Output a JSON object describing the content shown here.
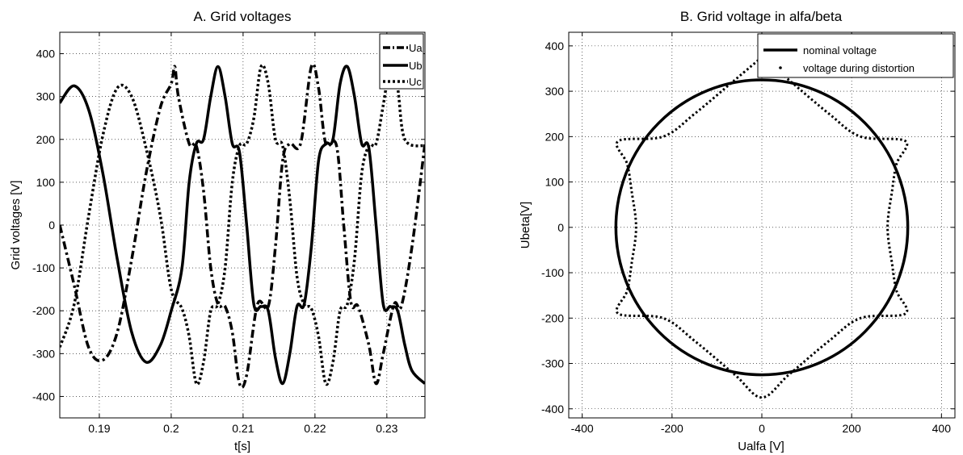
{
  "chart_data": [
    {
      "type": "line",
      "title": "A.   Grid voltages",
      "xlabel": "t[s]",
      "ylabel": "Grid voltages [V]",
      "xlim": [
        0.1845,
        0.2353
      ],
      "ylim": [
        -450,
        450
      ],
      "xticks": [
        0.19,
        0.2,
        0.21,
        0.22,
        0.23
      ],
      "xtick_labels": [
        "0.19",
        "0.2",
        "0.21",
        "0.22",
        "0.23"
      ],
      "yticks": [
        -400,
        -300,
        -200,
        -100,
        0,
        100,
        200,
        300,
        400
      ],
      "ytick_labels": [
        "-400",
        "-300",
        "-200",
        "-100",
        "0",
        "100",
        "200",
        "300",
        "400"
      ],
      "grid": true,
      "legend_position": "top-right",
      "series": [
        {
          "name": "Ua",
          "style": "dashdot",
          "color": "#000000",
          "points": [
            [
              0.1845,
              0
            ],
            [
              0.1865,
              -140
            ],
            [
              0.1885,
              -285
            ],
            [
              0.1905,
              -315
            ],
            [
              0.1925,
              -250
            ],
            [
              0.1945,
              -80
            ],
            [
              0.1965,
              120
            ],
            [
              0.1985,
              275
            ],
            [
              0.2,
              330
            ],
            [
              0.2005,
              370
            ],
            [
              0.201,
              300
            ],
            [
              0.2025,
              190
            ],
            [
              0.2035,
              185
            ],
            [
              0.2045,
              80
            ],
            [
              0.2055,
              -100
            ],
            [
              0.2065,
              -185
            ],
            [
              0.2075,
              -190
            ],
            [
              0.2085,
              -250
            ],
            [
              0.2095,
              -370
            ],
            [
              0.2105,
              -350
            ],
            [
              0.212,
              -185
            ],
            [
              0.2135,
              -190
            ],
            [
              0.2145,
              -50
            ],
            [
              0.2155,
              150
            ],
            [
              0.2165,
              190
            ],
            [
              0.218,
              190
            ],
            [
              0.2195,
              370
            ],
            [
              0.2205,
              320
            ],
            [
              0.2215,
              190
            ],
            [
              0.223,
              185
            ],
            [
              0.224,
              0
            ],
            [
              0.225,
              -180
            ],
            [
              0.226,
              -190
            ],
            [
              0.2275,
              -280
            ],
            [
              0.2285,
              -370
            ],
            [
              0.2295,
              -300
            ],
            [
              0.231,
              -185
            ],
            [
              0.232,
              -190
            ],
            [
              0.2335,
              -50
            ],
            [
              0.2353,
              190
            ]
          ]
        },
        {
          "name": "Ub",
          "style": "solid",
          "color": "#000000",
          "points": [
            [
              0.1845,
              285
            ],
            [
              0.1865,
              325
            ],
            [
              0.1885,
              270
            ],
            [
              0.1905,
              120
            ],
            [
              0.1925,
              -80
            ],
            [
              0.1945,
              -250
            ],
            [
              0.1965,
              -320
            ],
            [
              0.1985,
              -280
            ],
            [
              0.2,
              -200
            ],
            [
              0.2015,
              -100
            ],
            [
              0.2025,
              100
            ],
            [
              0.2035,
              190
            ],
            [
              0.2045,
              200
            ],
            [
              0.2055,
              300
            ],
            [
              0.2065,
              370
            ],
            [
              0.2075,
              300
            ],
            [
              0.2085,
              190
            ],
            [
              0.2095,
              170
            ],
            [
              0.2105,
              0
            ],
            [
              0.2115,
              -185
            ],
            [
              0.2125,
              -190
            ],
            [
              0.2135,
              -200
            ],
            [
              0.2145,
              -310
            ],
            [
              0.2155,
              -370
            ],
            [
              0.2165,
              -300
            ],
            [
              0.2175,
              -190
            ],
            [
              0.2185,
              -185
            ],
            [
              0.2195,
              -50
            ],
            [
              0.2205,
              150
            ],
            [
              0.2215,
              190
            ],
            [
              0.2225,
              200
            ],
            [
              0.2235,
              330
            ],
            [
              0.2245,
              370
            ],
            [
              0.2255,
              300
            ],
            [
              0.2265,
              190
            ],
            [
              0.2275,
              180
            ],
            [
              0.2285,
              0
            ],
            [
              0.2295,
              -185
            ],
            [
              0.2305,
              -190
            ],
            [
              0.2315,
              -200
            ],
            [
              0.2325,
              -280
            ],
            [
              0.2335,
              -340
            ],
            [
              0.2353,
              -370
            ]
          ]
        },
        {
          "name": "Uc",
          "style": "dotted",
          "color": "#000000",
          "points": [
            [
              0.1845,
              -285
            ],
            [
              0.1865,
              -185
            ],
            [
              0.1885,
              20
            ],
            [
              0.1905,
              210
            ],
            [
              0.1925,
              320
            ],
            [
              0.1945,
              300
            ],
            [
              0.1965,
              180
            ],
            [
              0.1985,
              20
            ],
            [
              0.2,
              -150
            ],
            [
              0.2015,
              -195
            ],
            [
              0.2025,
              -260
            ],
            [
              0.2035,
              -370
            ],
            [
              0.2045,
              -320
            ],
            [
              0.2055,
              -200
            ],
            [
              0.2065,
              -185
            ],
            [
              0.2075,
              -100
            ],
            [
              0.2085,
              100
            ],
            [
              0.2095,
              185
            ],
            [
              0.2105,
              190
            ],
            [
              0.2115,
              250
            ],
            [
              0.2125,
              370
            ],
            [
              0.2135,
              330
            ],
            [
              0.2145,
              200
            ],
            [
              0.2155,
              185
            ],
            [
              0.2165,
              60
            ],
            [
              0.2175,
              -120
            ],
            [
              0.2185,
              -185
            ],
            [
              0.2195,
              -195
            ],
            [
              0.2205,
              -260
            ],
            [
              0.2215,
              -370
            ],
            [
              0.2225,
              -320
            ],
            [
              0.2235,
              -200
            ],
            [
              0.2245,
              -185
            ],
            [
              0.2255,
              -80
            ],
            [
              0.2265,
              120
            ],
            [
              0.2275,
              185
            ],
            [
              0.2285,
              190
            ],
            [
              0.2295,
              280
            ],
            [
              0.2305,
              370
            ],
            [
              0.2315,
              320
            ],
            [
              0.2325,
              200
            ],
            [
              0.2353,
              185
            ]
          ]
        }
      ]
    },
    {
      "type": "line",
      "title": "B.   Grid voltage in alfa/beta",
      "xlabel": "Ualfa [V]",
      "ylabel": "Ubeta[V]",
      "xlim": [
        -430,
        430
      ],
      "ylim": [
        -420,
        430
      ],
      "xticks": [
        -400,
        -200,
        0,
        200,
        400
      ],
      "xtick_labels": [
        "-400",
        "-200",
        "0",
        "200",
        "400"
      ],
      "yticks": [
        -400,
        -300,
        -200,
        -100,
        0,
        100,
        200,
        300,
        400
      ],
      "ytick_labels": [
        "-400",
        "-300",
        "-200",
        "-100",
        "0",
        "100",
        "200",
        "300",
        "400"
      ],
      "grid": true,
      "legend_position": "top-right",
      "series": [
        {
          "name": "nominal voltage",
          "style": "solid",
          "color": "#000000",
          "radius": 325
        },
        {
          "name": "voltage during distortion",
          "style": "dotted",
          "color": "#000000",
          "points": [
            [
              0,
              375
            ],
            [
              -60,
              325
            ],
            [
              -150,
              250
            ],
            [
              -220,
              200
            ],
            [
              -320,
              190
            ],
            [
              -300,
              140
            ],
            [
              -290,
              80
            ],
            [
              -280,
              0
            ],
            [
              -290,
              -80
            ],
            [
              -300,
              -140
            ],
            [
              -320,
              -190
            ],
            [
              -220,
              -200
            ],
            [
              -150,
              -250
            ],
            [
              -60,
              -325
            ],
            [
              0,
              -375
            ],
            [
              60,
              -325
            ],
            [
              150,
              -250
            ],
            [
              220,
              -200
            ],
            [
              320,
              -190
            ],
            [
              300,
              -140
            ],
            [
              290,
              -80
            ],
            [
              280,
              0
            ],
            [
              290,
              80
            ],
            [
              300,
              140
            ],
            [
              320,
              190
            ],
            [
              220,
              200
            ],
            [
              150,
              250
            ],
            [
              60,
              325
            ],
            [
              0,
              375
            ]
          ]
        }
      ]
    }
  ]
}
